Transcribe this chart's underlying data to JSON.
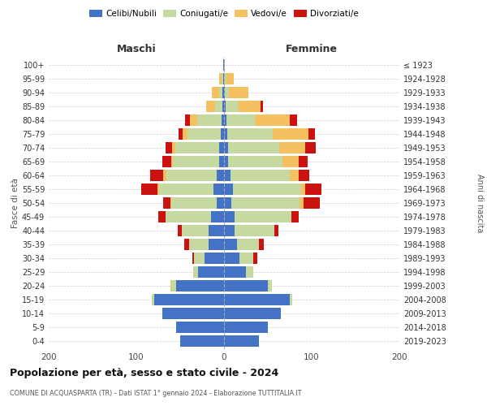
{
  "age_groups": [
    "0-4",
    "5-9",
    "10-14",
    "15-19",
    "20-24",
    "25-29",
    "30-34",
    "35-39",
    "40-44",
    "45-49",
    "50-54",
    "55-59",
    "60-64",
    "65-69",
    "70-74",
    "75-79",
    "80-84",
    "85-89",
    "90-94",
    "95-99",
    "100+"
  ],
  "birth_years": [
    "2019-2023",
    "2014-2018",
    "2009-2013",
    "2004-2008",
    "1999-2003",
    "1994-1998",
    "1989-1993",
    "1984-1988",
    "1979-1983",
    "1974-1978",
    "1969-1973",
    "1964-1968",
    "1959-1963",
    "1954-1958",
    "1949-1953",
    "1944-1948",
    "1939-1943",
    "1934-1938",
    "1929-1933",
    "1924-1928",
    "≤ 1923"
  ],
  "colors": {
    "celibi": "#4472c4",
    "coniugati": "#c5d9a0",
    "vedovi": "#f5c060",
    "divorziati": "#cc1111"
  },
  "maschi": {
    "celibi": [
      50,
      55,
      70,
      80,
      55,
      30,
      22,
      18,
      18,
      15,
      8,
      12,
      8,
      6,
      6,
      4,
      3,
      2,
      2,
      1,
      1
    ],
    "coniugati": [
      0,
      0,
      0,
      2,
      5,
      5,
      12,
      22,
      30,
      52,
      52,
      62,
      58,
      52,
      50,
      38,
      28,
      8,
      4,
      2,
      0
    ],
    "vedovi": [
      0,
      0,
      0,
      0,
      1,
      0,
      0,
      0,
      0,
      0,
      1,
      2,
      3,
      2,
      3,
      5,
      8,
      10,
      8,
      3,
      0
    ],
    "divorziati": [
      0,
      0,
      0,
      0,
      0,
      0,
      2,
      5,
      5,
      8,
      8,
      18,
      15,
      10,
      8,
      5,
      5,
      0,
      0,
      0,
      0
    ]
  },
  "femmine": {
    "celibi": [
      40,
      50,
      65,
      75,
      50,
      25,
      18,
      15,
      12,
      12,
      8,
      10,
      7,
      5,
      5,
      4,
      3,
      2,
      1,
      0,
      0
    ],
    "coniugati": [
      0,
      0,
      0,
      3,
      5,
      8,
      15,
      25,
      45,
      65,
      78,
      78,
      68,
      62,
      58,
      52,
      32,
      15,
      5,
      3,
      0
    ],
    "vedovi": [
      0,
      0,
      0,
      0,
      0,
      0,
      0,
      0,
      0,
      0,
      5,
      5,
      10,
      18,
      30,
      40,
      40,
      25,
      22,
      8,
      1
    ],
    "divorziati": [
      0,
      0,
      0,
      0,
      0,
      0,
      5,
      5,
      5,
      8,
      18,
      18,
      12,
      10,
      12,
      8,
      8,
      2,
      0,
      0,
      0
    ]
  },
  "title": "Popolazione per età, sesso e stato civile - 2024",
  "subtitle": "COMUNE DI ACQUASPARTA (TR) - Dati ISTAT 1° gennaio 2024 - Elaborazione TUTTITALIA.IT",
  "xlabel_left": "Maschi",
  "xlabel_right": "Femmine",
  "ylabel_left": "Fasce di età",
  "ylabel_right": "Anni di nascita",
  "xlim": 200,
  "legend_labels": [
    "Celibi/Nubili",
    "Coniugati/e",
    "Vedovi/e",
    "Divorziati/e"
  ],
  "bg_color": "#ffffff",
  "grid_color": "#cccccc"
}
